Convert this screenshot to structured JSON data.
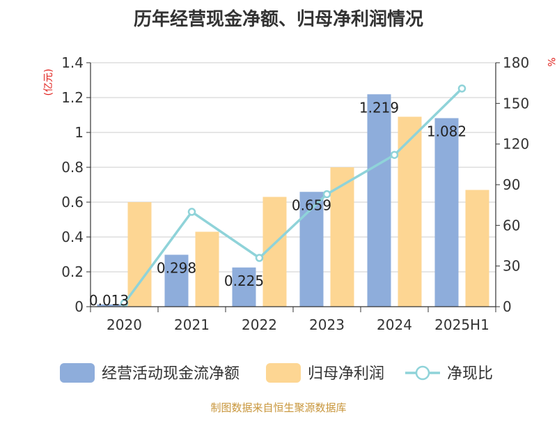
{
  "chart_data": {
    "type": "bar",
    "title": "历年经营现金净额、归母净利润情况",
    "categories": [
      "2020",
      "2021",
      "2022",
      "2023",
      "2024",
      "2025H1"
    ],
    "y_unit_left": "(亿元)",
    "y_unit_right": "%",
    "ylim_left": [
      0,
      1.4
    ],
    "ylim_right": [
      0,
      180
    ],
    "yticks_left": [
      "0",
      "0.2",
      "0.4",
      "0.6",
      "0.8",
      "1",
      "1.2",
      "1.4"
    ],
    "yticks_right": [
      "0",
      "30",
      "60",
      "90",
      "120",
      "150",
      "180"
    ],
    "grid": true,
    "legend_position": "bottom",
    "series": [
      {
        "name": "经营活动现金流净额",
        "type": "bar",
        "axis": "left",
        "color": "#8eaddb",
        "values": [
          0.013,
          0.298,
          0.225,
          0.659,
          1.219,
          1.082
        ],
        "labels": [
          "0.013",
          "0.298",
          "0.225",
          "0.659",
          "1.219",
          "1.082"
        ]
      },
      {
        "name": "归母净利润",
        "type": "bar",
        "axis": "left",
        "color": "#fdd693",
        "values": [
          0.6,
          0.43,
          0.63,
          0.8,
          1.09,
          0.67
        ]
      },
      {
        "name": "净现比",
        "type": "line",
        "axis": "right",
        "color": "#8fd3d9",
        "values": [
          2.5,
          70,
          36,
          83,
          112,
          161
        ]
      }
    ],
    "source": "制图数据来自恒生聚源数据库"
  }
}
